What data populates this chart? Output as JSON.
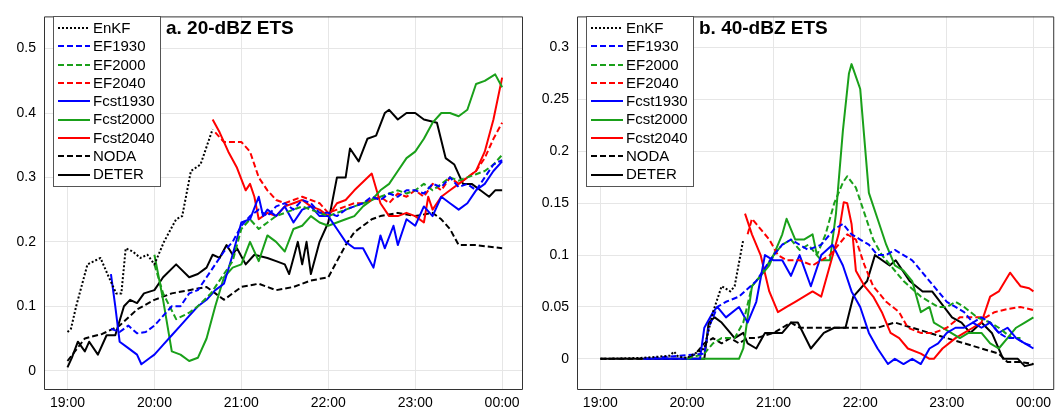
{
  "chart_data": [
    {
      "type": "line",
      "title": "a. 20-dBZ ETS",
      "xlim": [
        18.73,
        24.24
      ],
      "xticks": [
        {
          "value": 19,
          "label": "19:00"
        },
        {
          "value": 20,
          "label": "20:00"
        },
        {
          "value": 21,
          "label": "21:00"
        },
        {
          "value": 22,
          "label": "22:00"
        },
        {
          "value": 23,
          "label": "23:00"
        },
        {
          "value": 24,
          "label": "00:00"
        }
      ],
      "ylim": [
        -0.03,
        0.55
      ],
      "yticks": [
        0,
        0.1,
        0.2,
        0.3,
        0.4,
        0.5
      ],
      "grid": true,
      "legend": "top left",
      "marker": "none",
      "series": [
        {
          "name": "EnKF",
          "color": "#000000",
          "line_style": "dotted",
          "x": [
            19,
            19.04,
            19.1,
            19.23,
            19.38,
            19.46,
            19.56,
            19.62,
            19.67,
            19.75,
            19.84,
            19.92,
            20.0,
            20.11,
            20.25,
            20.32,
            20.42,
            20.53,
            20.67
          ],
          "values": [
            0.06,
            0.065,
            0.1,
            0.165,
            0.175,
            0.15,
            0.12,
            0.12,
            0.19,
            0.185,
            0.175,
            0.18,
            0.165,
            0.2,
            0.235,
            0.24,
            0.31,
            0.32,
            0.375
          ]
        },
        {
          "name": "EF1930",
          "color": "#0000ff",
          "line_style": "dashed",
          "x": [
            19.5,
            19.6,
            19.7,
            19.8,
            19.9,
            20.0,
            20.1,
            20.2,
            20.3,
            20.4,
            20.5,
            20.6,
            20.7,
            20.8,
            20.9,
            21.0,
            21.1,
            21.2,
            21.3,
            21.4,
            21.5,
            21.6,
            21.7,
            21.8,
            21.9,
            22.0,
            22.1,
            22.2,
            22.3,
            22.4,
            22.5,
            22.6,
            22.7,
            22.8,
            22.9,
            23.0,
            23.1,
            23.2,
            23.3,
            23.4,
            23.5,
            23.6,
            23.7,
            23.8,
            23.9,
            24.0
          ],
          "values": [
            0.065,
            0.06,
            0.07,
            0.058,
            0.06,
            0.07,
            0.085,
            0.1,
            0.1,
            0.12,
            0.125,
            0.145,
            0.165,
            0.185,
            0.2,
            0.225,
            0.24,
            0.25,
            0.24,
            0.255,
            0.26,
            0.25,
            0.265,
            0.26,
            0.245,
            0.245,
            0.24,
            0.25,
            0.255,
            0.26,
            0.27,
            0.265,
            0.275,
            0.27,
            0.28,
            0.28,
            0.275,
            0.29,
            0.285,
            0.3,
            0.285,
            0.29,
            0.28,
            0.3,
            0.32,
            0.327
          ]
        },
        {
          "name": "EF2000",
          "color": "#1aa01a",
          "line_style": "dashed",
          "x": [
            20.0,
            20.1,
            20.25,
            20.4,
            20.5,
            20.65,
            20.8,
            20.9,
            21.0,
            21.1,
            21.2,
            21.3,
            21.4,
            21.5,
            21.6,
            21.7,
            21.8,
            21.9,
            22.0,
            22.1,
            22.2,
            22.3,
            22.4,
            22.5,
            22.6,
            22.7,
            22.8,
            22.9,
            23.0,
            23.1,
            23.2,
            23.3,
            23.4,
            23.5,
            23.6,
            23.7,
            23.8,
            23.9,
            24.0
          ],
          "values": [
            0.165,
            0.12,
            0.08,
            0.09,
            0.1,
            0.12,
            0.15,
            0.17,
            0.22,
            0.235,
            0.22,
            0.23,
            0.24,
            0.245,
            0.25,
            0.255,
            0.25,
            0.245,
            0.24,
            0.245,
            0.25,
            0.255,
            0.26,
            0.265,
            0.27,
            0.275,
            0.28,
            0.275,
            0.28,
            0.29,
            0.28,
            0.29,
            0.3,
            0.295,
            0.3,
            0.305,
            0.31,
            0.32,
            0.335
          ]
        },
        {
          "name": "EF2040",
          "color": "#ff0000",
          "line_style": "dashed",
          "x": [
            20.7,
            20.8,
            20.9,
            21.0,
            21.1,
            21.2,
            21.3,
            21.4,
            21.5,
            21.6,
            21.7,
            21.8,
            21.9,
            22.0,
            22.1,
            22.2,
            22.3,
            22.4,
            22.5,
            22.6,
            22.7,
            22.8,
            22.9,
            23.0,
            23.1,
            23.2,
            23.3,
            23.4,
            23.5,
            23.6,
            23.7,
            23.8,
            23.9,
            24.0
          ],
          "values": [
            0.37,
            0.355,
            0.355,
            0.355,
            0.34,
            0.3,
            0.28,
            0.265,
            0.26,
            0.265,
            0.27,
            0.265,
            0.26,
            0.245,
            0.25,
            0.255,
            0.26,
            0.26,
            0.265,
            0.27,
            0.26,
            0.275,
            0.27,
            0.28,
            0.27,
            0.29,
            0.28,
            0.3,
            0.29,
            0.3,
            0.31,
            0.33,
            0.36,
            0.385
          ]
        },
        {
          "name": "Fcst1930",
          "color": "#0000ff",
          "line_style": "solid",
          "x": [
            19.5,
            19.55,
            19.6,
            19.7,
            19.8,
            19.85,
            19.95,
            20.0,
            20.1,
            20.2,
            20.3,
            20.4,
            20.5,
            20.6,
            20.7,
            20.8,
            20.9,
            21.0,
            21.1,
            21.2,
            21.25,
            21.3,
            21.4,
            21.5,
            21.6,
            21.7,
            21.8,
            21.9,
            22.0,
            22.1,
            22.2,
            22.3,
            22.4,
            22.52,
            22.6,
            22.65,
            22.75,
            22.8,
            22.9,
            23.0,
            23.1,
            23.2,
            23.3,
            23.4,
            23.5,
            23.6,
            23.7,
            23.8,
            23.9,
            24.0
          ],
          "values": [
            0.15,
            0.1,
            0.045,
            0.035,
            0.025,
            0.01,
            0.02,
            0.025,
            0.04,
            0.055,
            0.07,
            0.085,
            0.1,
            0.11,
            0.125,
            0.135,
            0.18,
            0.23,
            0.235,
            0.27,
            0.24,
            0.25,
            0.24,
            0.255,
            0.23,
            0.25,
            0.255,
            0.24,
            0.24,
            0.22,
            0.2,
            0.19,
            0.19,
            0.16,
            0.21,
            0.19,
            0.225,
            0.195,
            0.235,
            0.225,
            0.255,
            0.24,
            0.27,
            0.26,
            0.25,
            0.26,
            0.28,
            0.29,
            0.31,
            0.325
          ]
        },
        {
          "name": "Fcst2000",
          "color": "#1aa01a",
          "line_style": "solid",
          "x": [
            20.0,
            20.1,
            20.2,
            20.3,
            20.4,
            20.5,
            20.6,
            20.7,
            20.8,
            20.9,
            21.0,
            21.1,
            21.2,
            21.3,
            21.4,
            21.5,
            21.6,
            21.7,
            21.8,
            21.9,
            22.0,
            22.1,
            22.2,
            22.3,
            22.4,
            22.5,
            22.6,
            22.7,
            22.8,
            22.9,
            23.0,
            23.1,
            23.2,
            23.3,
            23.4,
            23.5,
            23.6,
            23.7,
            23.8,
            23.92,
            24.0
          ],
          "values": [
            0.18,
            0.11,
            0.03,
            0.025,
            0.015,
            0.02,
            0.05,
            0.1,
            0.145,
            0.16,
            0.165,
            0.2,
            0.17,
            0.21,
            0.2,
            0.185,
            0.22,
            0.225,
            0.24,
            0.23,
            0.225,
            0.23,
            0.235,
            0.24,
            0.255,
            0.265,
            0.28,
            0.29,
            0.31,
            0.33,
            0.34,
            0.36,
            0.385,
            0.4,
            0.4,
            0.395,
            0.405,
            0.445,
            0.45,
            0.46,
            0.44
          ]
        },
        {
          "name": "Fcst2040",
          "color": "#ff0000",
          "line_style": "solid",
          "x": [
            20.67,
            20.75,
            20.85,
            20.95,
            21.05,
            21.1,
            21.15,
            21.2,
            21.3,
            21.4,
            21.5,
            21.6,
            21.7,
            21.8,
            21.9,
            22.0,
            22.1,
            22.2,
            22.3,
            22.5,
            22.6,
            22.7,
            22.8,
            22.9,
            23.0,
            23.1,
            23.15,
            23.2,
            23.3,
            23.4,
            23.5,
            23.6,
            23.7,
            23.8,
            23.9,
            24.0
          ],
          "values": [
            0.39,
            0.37,
            0.34,
            0.315,
            0.28,
            0.29,
            0.27,
            0.235,
            0.245,
            0.24,
            0.255,
            0.26,
            0.265,
            0.255,
            0.25,
            0.24,
            0.26,
            0.265,
            0.28,
            0.306,
            0.26,
            0.24,
            0.24,
            0.245,
            0.24,
            0.23,
            0.27,
            0.25,
            0.27,
            0.28,
            0.29,
            0.3,
            0.31,
            0.34,
            0.39,
            0.455
          ]
        },
        {
          "name": "NODA",
          "color": "#000000",
          "line_style": "dashed",
          "x": [
            19.0,
            19.2,
            19.4,
            19.6,
            19.8,
            20.0,
            20.2,
            20.4,
            20.6,
            20.8,
            21.0,
            21.2,
            21.4,
            21.6,
            21.8,
            22.0,
            22.1,
            22.2,
            22.3,
            22.4,
            22.5,
            22.6,
            22.8,
            23.0,
            23.2,
            23.3,
            23.4,
            23.5,
            23.7,
            24.0
          ],
          "values": [
            0.015,
            0.05,
            0.057,
            0.07,
            0.095,
            0.11,
            0.12,
            0.125,
            0.13,
            0.11,
            0.13,
            0.135,
            0.125,
            0.13,
            0.14,
            0.145,
            0.17,
            0.195,
            0.215,
            0.225,
            0.235,
            0.24,
            0.245,
            0.24,
            0.245,
            0.235,
            0.22,
            0.195,
            0.195,
            0.19
          ]
        },
        {
          "name": "DETER",
          "color": "#000000",
          "line_style": "solid",
          "x": [
            19.0,
            19.05,
            19.12,
            19.2,
            19.25,
            19.35,
            19.45,
            19.55,
            19.65,
            19.72,
            19.8,
            19.88,
            20.0,
            20.1,
            20.25,
            20.4,
            20.5,
            20.6,
            20.67,
            20.75,
            20.83,
            20.9,
            20.95,
            21.05,
            21.15,
            21.3,
            21.4,
            21.5,
            21.55,
            21.65,
            21.7,
            21.75,
            21.8,
            21.9,
            22.0,
            22.1,
            22.2,
            22.25,
            22.35,
            22.45,
            22.55,
            22.65,
            22.7,
            22.8,
            22.9,
            23.0,
            23.1,
            23.25,
            23.35,
            23.45,
            23.55,
            23.65,
            23.75,
            23.85,
            23.92,
            24.0
          ],
          "values": [
            0.005,
            0.02,
            0.045,
            0.03,
            0.045,
            0.025,
            0.055,
            0.055,
            0.1,
            0.11,
            0.105,
            0.12,
            0.125,
            0.145,
            0.165,
            0.145,
            0.15,
            0.16,
            0.18,
            0.175,
            0.195,
            0.18,
            0.19,
            0.165,
            0.18,
            0.175,
            0.17,
            0.165,
            0.15,
            0.2,
            0.165,
            0.2,
            0.15,
            0.2,
            0.23,
            0.3,
            0.3,
            0.345,
            0.325,
            0.36,
            0.365,
            0.4,
            0.405,
            0.39,
            0.4,
            0.4,
            0.39,
            0.385,
            0.33,
            0.32,
            0.29,
            0.29,
            0.28,
            0.27,
            0.28,
            0.28
          ]
        }
      ]
    },
    {
      "type": "line",
      "title": "b. 40-dBZ ETS",
      "xlim": [
        18.73,
        24.24
      ],
      "xticks": [
        {
          "value": 19,
          "label": "19:00"
        },
        {
          "value": 20,
          "label": "20:00"
        },
        {
          "value": 21,
          "label": "21:00"
        },
        {
          "value": 22,
          "label": "22:00"
        },
        {
          "value": 23,
          "label": "23:00"
        },
        {
          "value": 24,
          "label": "00:00"
        }
      ],
      "ylim": [
        -0.03,
        0.33
      ],
      "yticks": [
        0,
        0.05,
        0.1,
        0.15,
        0.2,
        0.25,
        0.3
      ],
      "grid": true,
      "legend": "top left",
      "marker": "none",
      "series": [
        {
          "name": "EnKF",
          "color": "#000000",
          "line_style": "dotted",
          "x": [
            19,
            19.5,
            19.8,
            19.85,
            19.9,
            20.0,
            20.2,
            20.3,
            20.4,
            20.5,
            20.55,
            20.65
          ],
          "values": [
            0,
            0.001,
            0.003,
            0.007,
            0.002,
            0.001,
            0.01,
            0.045,
            0.07,
            0.065,
            0.07,
            0.115
          ]
        },
        {
          "name": "EF1930",
          "color": "#0000ff",
          "line_style": "dashed",
          "x": [
            19.5,
            20.2,
            20.25,
            20.35,
            20.45,
            20.6,
            20.8,
            21.0,
            21.1,
            21.2,
            21.4,
            21.55,
            21.7,
            21.8,
            21.9,
            22.0,
            22.1,
            22.2,
            22.3,
            22.4,
            22.5,
            22.6,
            22.7,
            22.8,
            22.9,
            23.0,
            23.1,
            23.2,
            23.3,
            23.4,
            23.5,
            23.6,
            23.7,
            23.8,
            23.9,
            24.0
          ],
          "values": [
            0,
            0.005,
            0.03,
            0.05,
            0.055,
            0.06,
            0.075,
            0.1,
            0.11,
            0.115,
            0.105,
            0.11,
            0.125,
            0.13,
            0.12,
            0.115,
            0.11,
            0.1,
            0.1,
            0.105,
            0.1,
            0.095,
            0.085,
            0.075,
            0.065,
            0.055,
            0.05,
            0.045,
            0.035,
            0.04,
            0.035,
            0.025,
            0.02,
            0.02,
            0.015,
            0.012
          ]
        },
        {
          "name": "EF2000",
          "color": "#1aa01a",
          "line_style": "dashed",
          "x": [
            20.0,
            20.2,
            20.3,
            20.4,
            20.55,
            20.65,
            20.75,
            20.85,
            21.0,
            21.1,
            21.2,
            21.3,
            21.4,
            21.5,
            21.6,
            21.7,
            21.8,
            21.85,
            21.95,
            22.05,
            22.15,
            22.25,
            22.35,
            22.5,
            22.7,
            22.9,
            23.0,
            23.1,
            23.2,
            23.35,
            23.5,
            23.6,
            23.75,
            23.85
          ],
          "values": [
            0,
            0.005,
            0.015,
            0.02,
            0.02,
            0.035,
            0.07,
            0.08,
            0.1,
            0.11,
            0.115,
            0.105,
            0.11,
            0.1,
            0.12,
            0.15,
            0.17,
            0.176,
            0.165,
            0.14,
            0.115,
            0.1,
            0.09,
            0.075,
            0.06,
            0.05,
            0.05,
            0.055,
            0.05,
            0.04,
            0.035,
            0.03,
            0.02,
            0.02
          ]
        },
        {
          "name": "EF2040",
          "color": "#ff0000",
          "line_style": "dashed",
          "x": [
            20.7,
            20.75,
            20.8,
            20.85,
            20.95,
            21.05,
            21.15,
            21.3,
            21.45,
            21.55,
            21.65,
            21.75,
            21.85,
            21.95,
            22.05,
            22.15,
            22.3,
            22.45,
            22.55,
            22.7,
            22.85,
            23.0,
            23.15,
            23.3,
            23.45,
            23.55,
            23.7,
            23.85,
            24.0
          ],
          "values": [
            0.12,
            0.135,
            0.13,
            0.125,
            0.115,
            0.1,
            0.095,
            0.095,
            0.09,
            0.095,
            0.1,
            0.11,
            0.12,
            0.115,
            0.09,
            0.07,
            0.055,
            0.045,
            0.03,
            0.025,
            0.025,
            0.03,
            0.04,
            0.04,
            0.04,
            0.045,
            0.048,
            0.05,
            0.047
          ]
        },
        {
          "name": "Fcst1930",
          "color": "#0000ff",
          "line_style": "solid",
          "x": [
            19.5,
            20.15,
            20.2,
            20.3,
            20.35,
            20.45,
            20.6,
            20.7,
            20.8,
            20.9,
            21.0,
            21.1,
            21.2,
            21.3,
            21.43,
            21.55,
            21.68,
            21.8,
            21.9,
            22.0,
            22.1,
            22.2,
            22.32,
            22.4,
            22.5,
            22.6,
            22.7,
            22.8,
            22.9,
            23.0,
            23.1,
            23.2,
            23.3,
            23.4,
            23.5,
            23.6,
            23.7,
            23.8,
            23.9,
            24.0
          ],
          "values": [
            0,
            0,
            0.03,
            0.045,
            0.05,
            0.04,
            0.05,
            0.035,
            0.055,
            0.1,
            0.095,
            0.095,
            0.08,
            0.1,
            0.07,
            0.1,
            0.11,
            0.09,
            0.065,
            0.05,
            0.025,
            0.01,
            -0.005,
            0,
            -0.005,
            0,
            -0.005,
            0.01,
            0.015,
            0.025,
            0.03,
            0.03,
            0.035,
            0.03,
            0.035,
            0.025,
            0.03,
            0.02,
            0.015,
            0.01
          ]
        },
        {
          "name": "Fcst2000",
          "color": "#1aa01a",
          "line_style": "solid",
          "x": [
            20.0,
            20.6,
            20.65,
            20.7,
            20.75,
            20.85,
            20.95,
            21.0,
            21.1,
            21.15,
            21.25,
            21.35,
            21.45,
            21.5,
            21.55,
            21.65,
            21.72,
            21.8,
            21.87,
            21.9,
            22.0,
            22.1,
            22.2,
            22.3,
            22.4,
            22.5,
            22.6,
            22.7,
            22.8,
            22.85,
            22.95,
            23.05,
            23.15,
            23.25,
            23.4,
            23.5,
            23.6,
            23.7,
            23.8,
            23.9,
            24.0
          ],
          "values": [
            0,
            0,
            0.01,
            0.04,
            0.07,
            0.08,
            0.09,
            0.1,
            0.12,
            0.135,
            0.115,
            0.115,
            0.12,
            0.1,
            0.095,
            0.095,
            0.14,
            0.22,
            0.275,
            0.284,
            0.26,
            0.16,
            0.135,
            0.11,
            0.09,
            0.085,
            0.075,
            0.045,
            0.05,
            0.035,
            0.03,
            0.025,
            0.02,
            0.025,
            0.025,
            0.015,
            0.01,
            0.02,
            0.03,
            0.035,
            0.04
          ]
        },
        {
          "name": "Fcst2040",
          "color": "#ff0000",
          "line_style": "solid",
          "x": [
            20.67,
            20.75,
            20.85,
            20.95,
            21.05,
            21.15,
            21.25,
            21.35,
            21.45,
            21.55,
            21.65,
            21.75,
            21.81,
            21.85,
            21.9,
            21.95,
            22.05,
            22.15,
            22.25,
            22.35,
            22.45,
            22.55,
            22.7,
            22.8,
            22.85,
            22.95,
            23.1,
            23.2,
            23.3,
            23.4,
            23.5,
            23.6,
            23.73,
            23.85,
            23.95,
            24.0
          ],
          "values": [
            0.14,
            0.12,
            0.1,
            0.065,
            0.045,
            0.05,
            0.055,
            0.06,
            0.065,
            0.06,
            0.09,
            0.12,
            0.151,
            0.15,
            0.13,
            0.085,
            0.07,
            0.06,
            0.045,
            0.025,
            0.02,
            0.01,
            0.005,
            0,
            0,
            0.01,
            0.02,
            0.025,
            0.03,
            0.035,
            0.06,
            0.065,
            0.083,
            0.07,
            0.068,
            0.065
          ]
        },
        {
          "name": "NODA",
          "color": "#000000",
          "line_style": "dashed",
          "x": [
            19.0,
            20.0,
            20.1,
            20.2,
            20.3,
            20.4,
            20.5,
            20.6,
            20.7,
            20.8,
            21.0,
            21.1,
            21.2,
            21.3,
            21.4,
            21.6,
            21.8,
            22.0,
            22.2,
            22.4,
            22.6,
            22.8,
            23.0,
            23.2,
            23.4,
            23.6,
            23.7,
            23.85,
            24.0
          ],
          "values": [
            0,
            0,
            0.005,
            0.015,
            0.02,
            0.015,
            0.02,
            0.015,
            0.02,
            0.02,
            0.025,
            0.03,
            0.035,
            0.03,
            0.03,
            0.03,
            0.03,
            0.03,
            0.03,
            0.035,
            0.03,
            0.025,
            0.02,
            0.015,
            0.01,
            0.005,
            -0.003,
            -0.003,
            -0.005
          ]
        },
        {
          "name": "DETER",
          "color": "#000000",
          "line_style": "solid",
          "x": [
            19.0,
            20.2,
            20.25,
            20.32,
            20.4,
            20.5,
            20.55,
            20.65,
            20.7,
            20.8,
            20.9,
            21.0,
            21.1,
            21.2,
            21.28,
            21.43,
            21.58,
            21.7,
            21.83,
            21.92,
            22.08,
            22.17,
            22.34,
            22.41,
            22.57,
            22.72,
            22.83,
            23.06,
            23.17,
            23.27,
            23.4,
            23.52,
            23.65,
            23.82,
            23.9,
            24.0
          ],
          "values": [
            0,
            0,
            0.035,
            0.04,
            0.035,
            0.025,
            0.02,
            0.025,
            0.015,
            0.01,
            0.025,
            0.025,
            0.025,
            0.035,
            0.035,
            0.01,
            0.025,
            0.03,
            0.03,
            0.06,
            0.075,
            0.1,
            0.09,
            0.095,
            0.075,
            0.065,
            0.065,
            0.04,
            0.035,
            0.025,
            0.035,
            0.025,
            0,
            0,
            -0.007,
            -0.005
          ]
        }
      ]
    }
  ]
}
